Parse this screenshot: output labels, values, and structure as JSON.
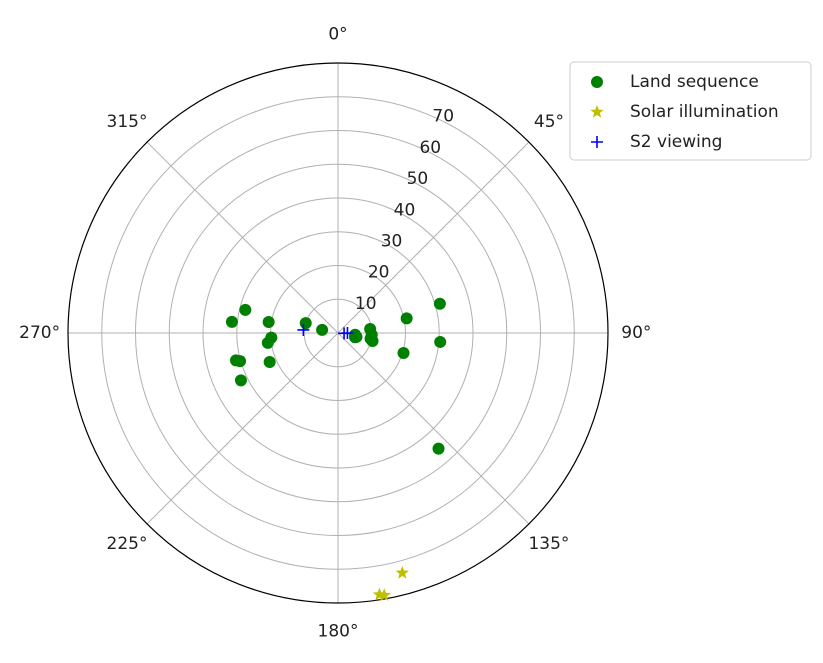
{
  "chart_data": {
    "type": "scatter",
    "projection": "polar",
    "theta_zero_location": "top",
    "theta_direction": "clockwise",
    "theta_ticks": [
      "0°",
      "45°",
      "90°",
      "135°",
      "180°",
      "225°",
      "270°",
      "315°"
    ],
    "theta_tick_values": [
      0,
      45,
      90,
      135,
      180,
      225,
      270,
      315
    ],
    "r_ticks": [
      "10",
      "20",
      "30",
      "40",
      "50",
      "60",
      "70"
    ],
    "r_tick_values": [
      10,
      20,
      30,
      40,
      50,
      60,
      70
    ],
    "rlim": [
      0,
      80
    ],
    "grid": true,
    "legend_position": "top-right",
    "series": [
      {
        "name": "Land sequence",
        "marker": "circle",
        "color": "#008000",
        "theta": [
          284,
          279,
          262,
          255,
          244,
          247,
          276,
          266,
          254,
          287,
          281,
          96,
          102,
          104,
          93,
          103,
          78,
          74,
          83,
          95,
          107,
          100,
          139
        ],
        "r": [
          28.3,
          20.8,
          21.0,
          31.3,
          32.0,
          22.0,
          31.6,
          19.8,
          30.2,
          10.0,
          4.8,
          5.1,
          5.6,
          5.2,
          10.0,
          10.5,
          20.8,
          31.4,
          9.6,
          30.4,
          20.3,
          9.8,
          45.4
        ]
      },
      {
        "name": "Solar illumination",
        "marker": "star",
        "color": "#bfbf00",
        "theta": [
          165,
          171,
          170
        ],
        "r": [
          73.6,
          78.5,
          78.9
        ]
      },
      {
        "name": "S2 viewing",
        "marker": "plus",
        "color": "#0000ff",
        "theta": [
          275,
          93,
          90
        ],
        "r": [
          10.3,
          1.8,
          2.8
        ]
      }
    ]
  }
}
